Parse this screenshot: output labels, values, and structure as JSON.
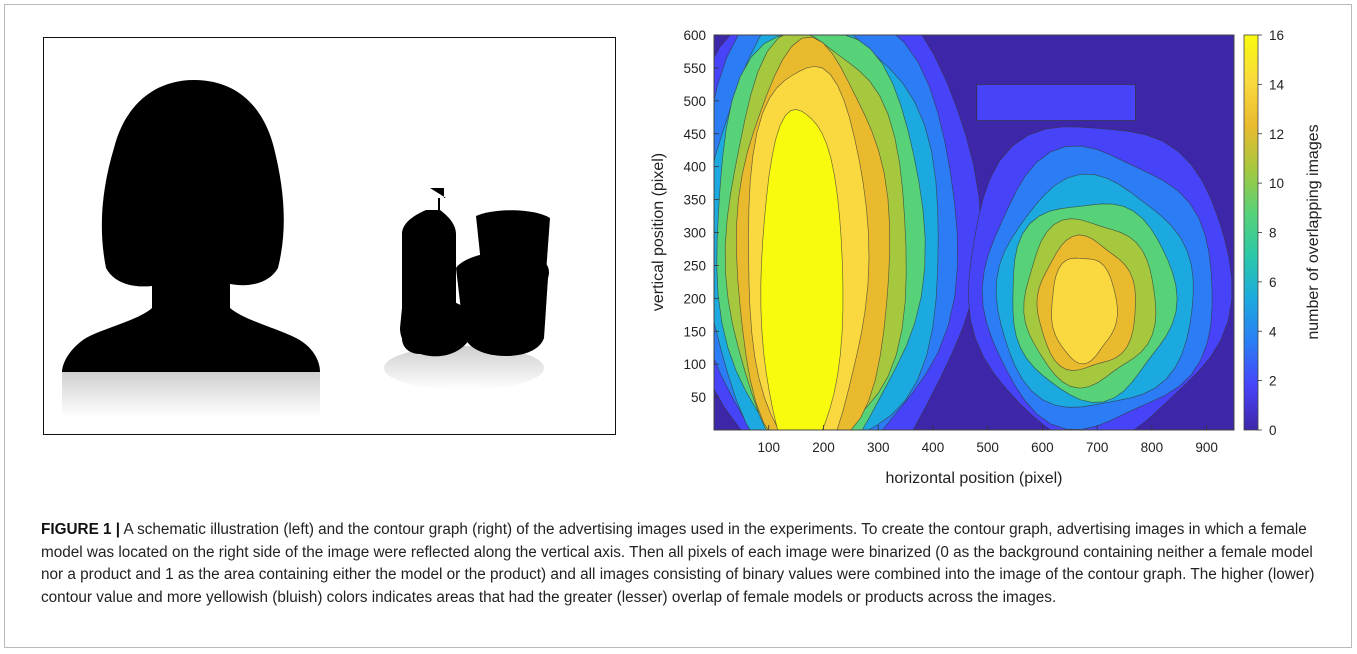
{
  "caption": {
    "label": "FIGURE 1 |",
    "text": "A schematic illustration (left) and the contour graph (right) of the advertising images used in the experiments. To create the contour graph, advertising images in which a female model was located on the right side of the image were reflected along the vertical axis. Then all pixels of each image were binarized (0 as the background containing neither a female model nor a product and 1 as the area containing either the model or the product) and all images consisting of binary values were combined into the image of the contour graph. The higher (lower) contour value and more yellowish (bluish) colors indicates areas that had the greater (lesser) overlap of female models or products across the images."
  },
  "illustration": {
    "icons": [
      "female-model-silhouette-icon",
      "cosmetic-products-silhouette-icon"
    ]
  },
  "chart_data": {
    "type": "heatmap",
    "title": "",
    "xlabel": "horizontal position (pixel)",
    "ylabel": "vertical position (pixel)",
    "colorbar_label": "number of overlapping images",
    "xlim": [
      0,
      950
    ],
    "ylim": [
      0,
      600
    ],
    "clim": [
      0,
      16
    ],
    "x_ticks": [
      100,
      200,
      300,
      400,
      500,
      600,
      700,
      800,
      900
    ],
    "y_ticks": [
      50,
      100,
      150,
      200,
      250,
      300,
      350,
      400,
      450,
      500,
      550,
      600
    ],
    "colorbar_ticks": [
      0,
      2,
      4,
      6,
      8,
      10,
      12,
      14,
      16
    ],
    "colormap": [
      "#3e26a8",
      "#4743f8",
      "#2c7cf6",
      "#1ca9df",
      "#2bc8a9",
      "#57d278",
      "#a6c83f",
      "#e9ba2e",
      "#f9d93f",
      "#f9fb0e"
    ],
    "regions": [
      {
        "name": "female-model",
        "peak_overlap": 16,
        "center_x": 170,
        "center_y": 300
      },
      {
        "name": "product",
        "peak_overlap": 14,
        "center_x": 680,
        "center_y": 200
      }
    ]
  }
}
